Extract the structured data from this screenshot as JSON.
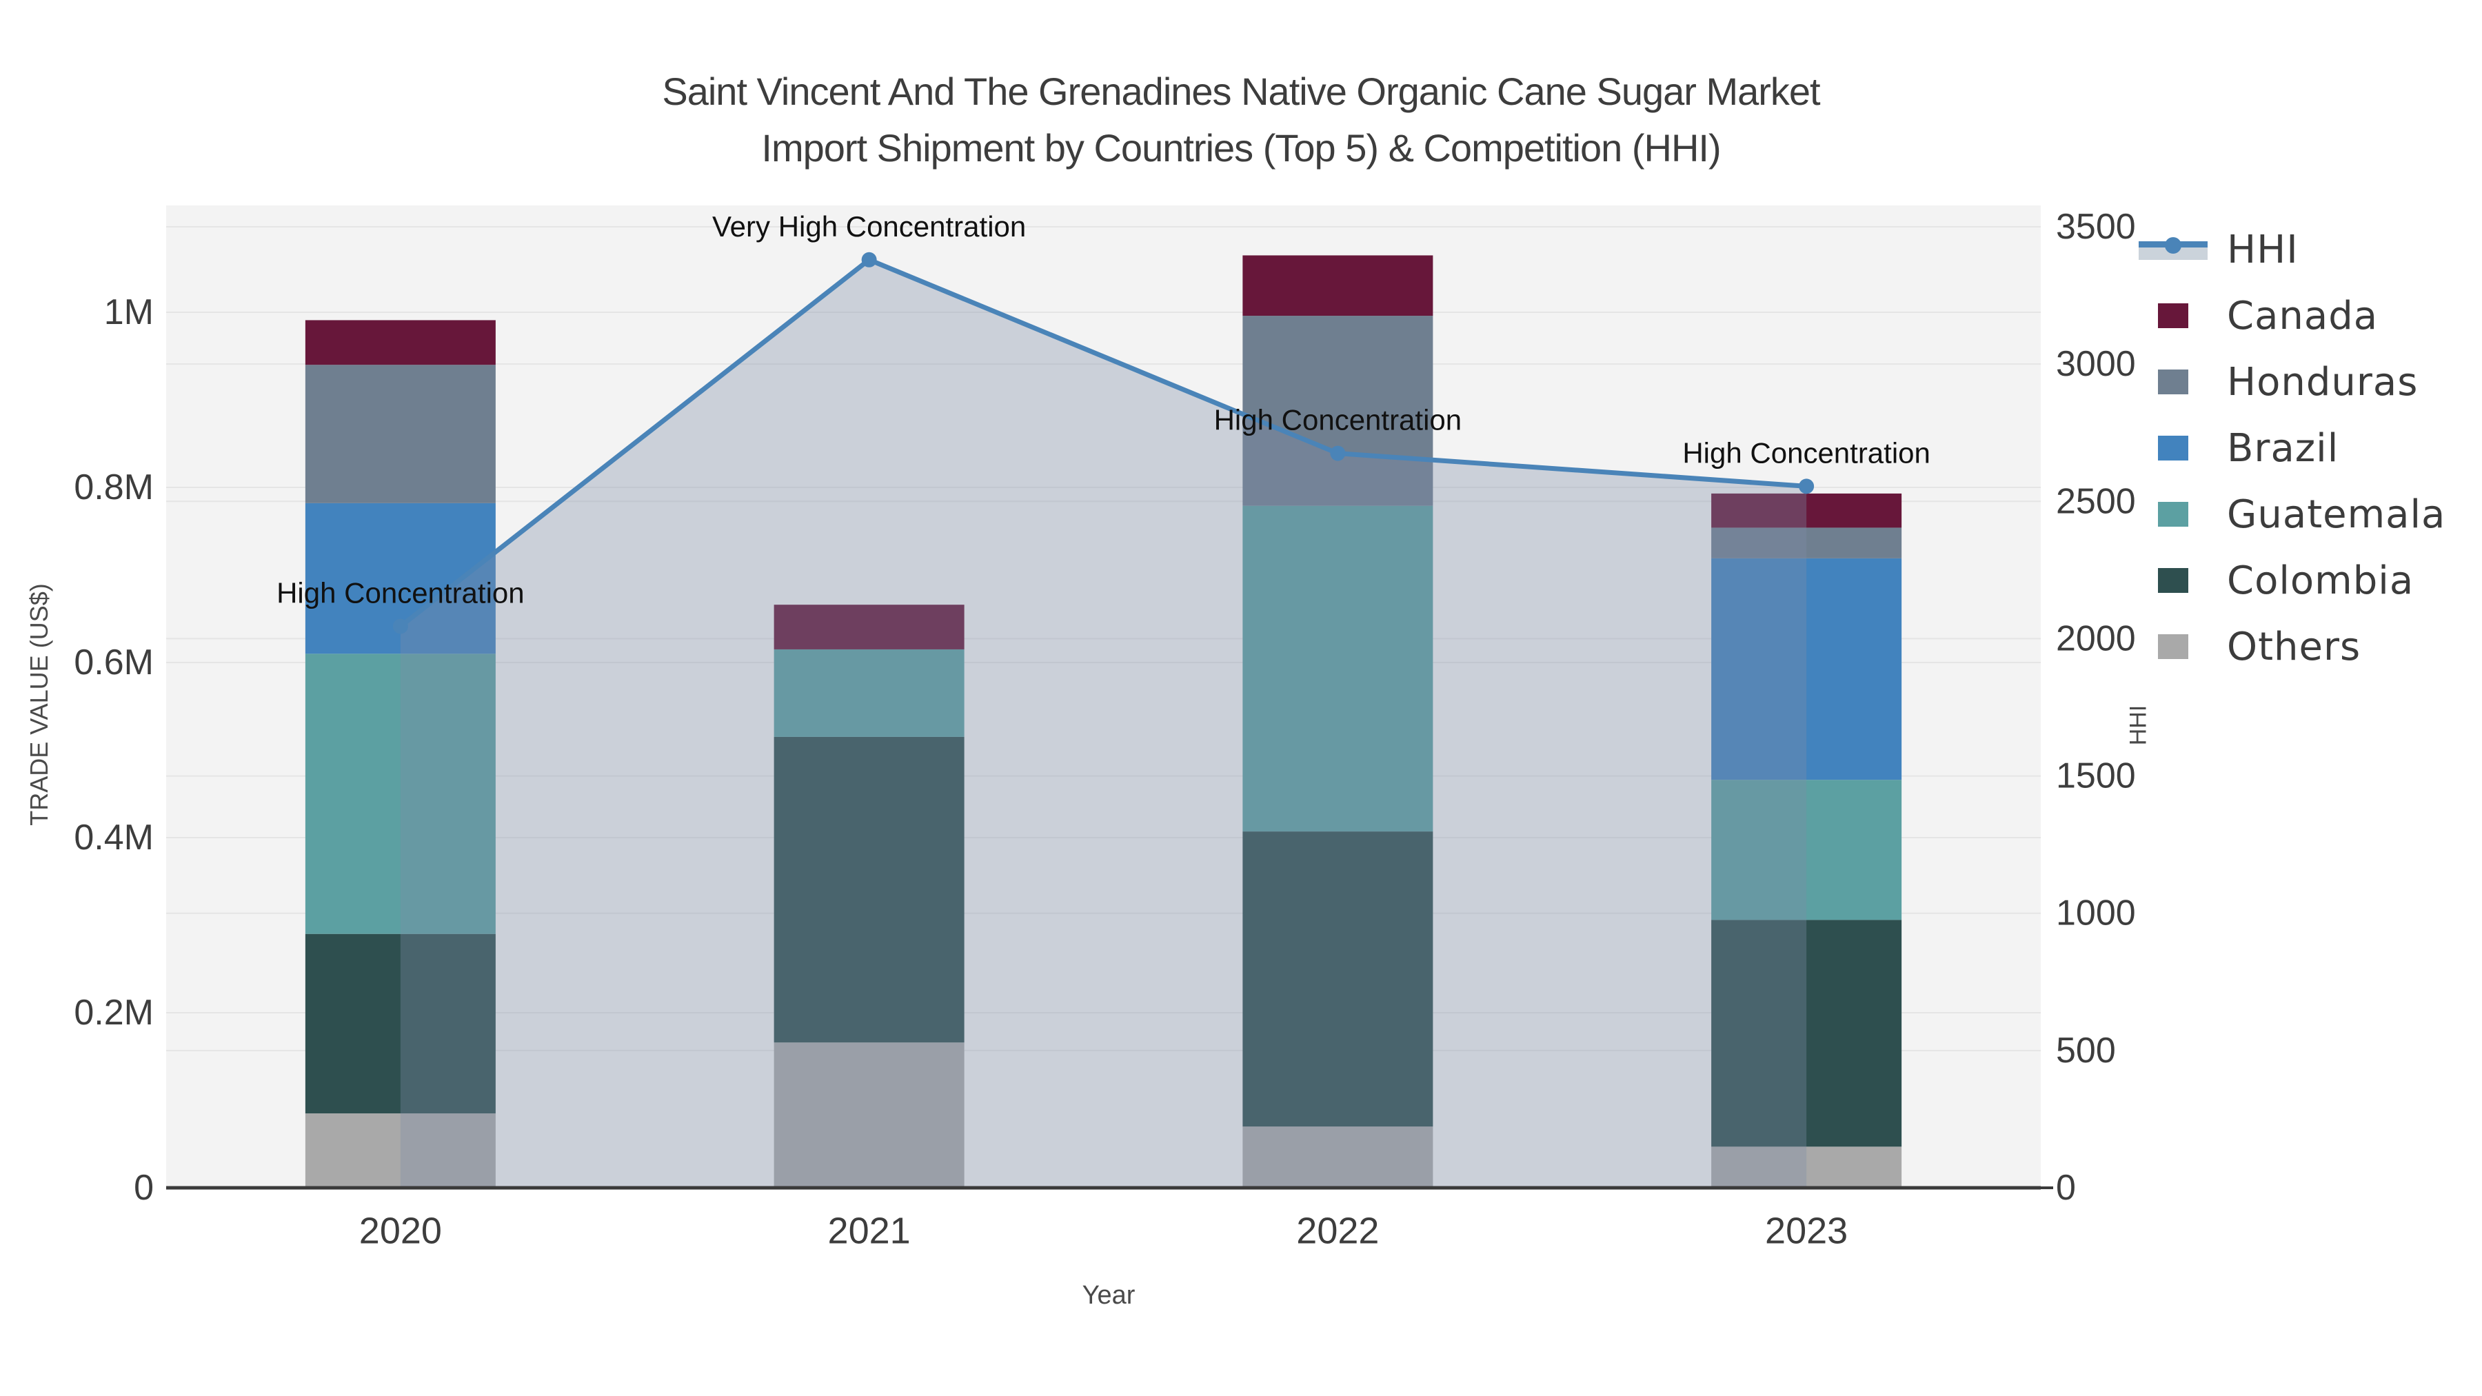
{
  "chart_data": {
    "type": "bar+line",
    "title_line1": "Saint Vincent And The Grenadines Native Organic Cane Sugar Market",
    "title_line2": "Import Shipment by Countries (Top 5) & Competition (HHI)",
    "categories": [
      "2020",
      "2021",
      "2022",
      "2023"
    ],
    "stack_order_bottom_to_top": [
      "Others",
      "Colombia",
      "Guatemala",
      "Brazil",
      "Honduras",
      "Canada"
    ],
    "bar_series": [
      {
        "name": "Others",
        "color": "#A9A9A9",
        "values": [
          85000,
          166000,
          70000,
          47000
        ]
      },
      {
        "name": "Colombia",
        "color": "#2E4F4F",
        "values": [
          205000,
          349000,
          337000,
          259000
        ]
      },
      {
        "name": "Guatemala",
        "color": "#5CA0A2",
        "values": [
          320000,
          100000,
          372000,
          160000
        ]
      },
      {
        "name": "Brazil",
        "color": "#4283BE",
        "values": [
          172000,
          0,
          0,
          253000
        ]
      },
      {
        "name": "Honduras",
        "color": "#6F7F90",
        "values": [
          158000,
          0,
          217000,
          35000
        ]
      },
      {
        "name": "Canada",
        "color": "#67173A",
        "values": [
          51000,
          51000,
          69000,
          39000
        ]
      }
    ],
    "line_series": {
      "name": "HHI",
      "axis": "right",
      "color": "#4A84B8",
      "area_color": "#7D8EA6",
      "values": [
        2045,
        3380,
        2675,
        2555
      ]
    },
    "annotations": [
      "High Concentration",
      "Very High Concentration",
      "High Concentration",
      "High Concentration"
    ],
    "x_axis": {
      "label": "Year"
    },
    "left_axis": {
      "label": "TRADE VALUE (US$)",
      "range": [
        0,
        1120000
      ],
      "ticks": [
        {
          "value": 0,
          "label": "0"
        },
        {
          "value": 200000,
          "label": "0.2M"
        },
        {
          "value": 400000,
          "label": "0.4M"
        },
        {
          "value": 600000,
          "label": "0.6M"
        },
        {
          "value": 800000,
          "label": "0.8M"
        },
        {
          "value": 1000000,
          "label": "1M"
        }
      ]
    },
    "right_axis": {
      "label": "HHI",
      "range": [
        0,
        3500
      ],
      "ticks": [
        {
          "value": 0,
          "label": "0"
        },
        {
          "value": 500,
          "label": "500"
        },
        {
          "value": 1000,
          "label": "1000"
        },
        {
          "value": 1500,
          "label": "1500"
        },
        {
          "value": 2000,
          "label": "2000"
        },
        {
          "value": 2500,
          "label": "2500"
        },
        {
          "value": 3000,
          "label": "3000"
        },
        {
          "value": 3500,
          "label": "3500"
        }
      ]
    },
    "legend": {
      "position": "outside-right",
      "items": [
        {
          "id": "hhi",
          "label": "HHI",
          "type": "line",
          "color": "#4A84B8"
        },
        {
          "id": "canada",
          "label": "Canada",
          "type": "square",
          "color": "#67173A"
        },
        {
          "id": "honduras",
          "label": "Honduras",
          "type": "square",
          "color": "#6F7F90"
        },
        {
          "id": "brazil",
          "label": "Brazil",
          "type": "square",
          "color": "#4283BE"
        },
        {
          "id": "guatemala",
          "label": "Guatemala",
          "type": "square",
          "color": "#5CA0A2"
        },
        {
          "id": "colombia",
          "label": "Colombia",
          "type": "square",
          "color": "#2E4F4F"
        },
        {
          "id": "others",
          "label": "Others",
          "type": "square",
          "color": "#A9A9A9"
        }
      ]
    },
    "grid": true
  },
  "colors": {
    "plot_bg": "#F3F3F3",
    "grid": "#E5E5E5",
    "axis_line": "#3A3A3A",
    "tick_text": "#3D3D3D",
    "annotation_text": "#111111",
    "hhi_key_band": "#CBD3DB"
  }
}
